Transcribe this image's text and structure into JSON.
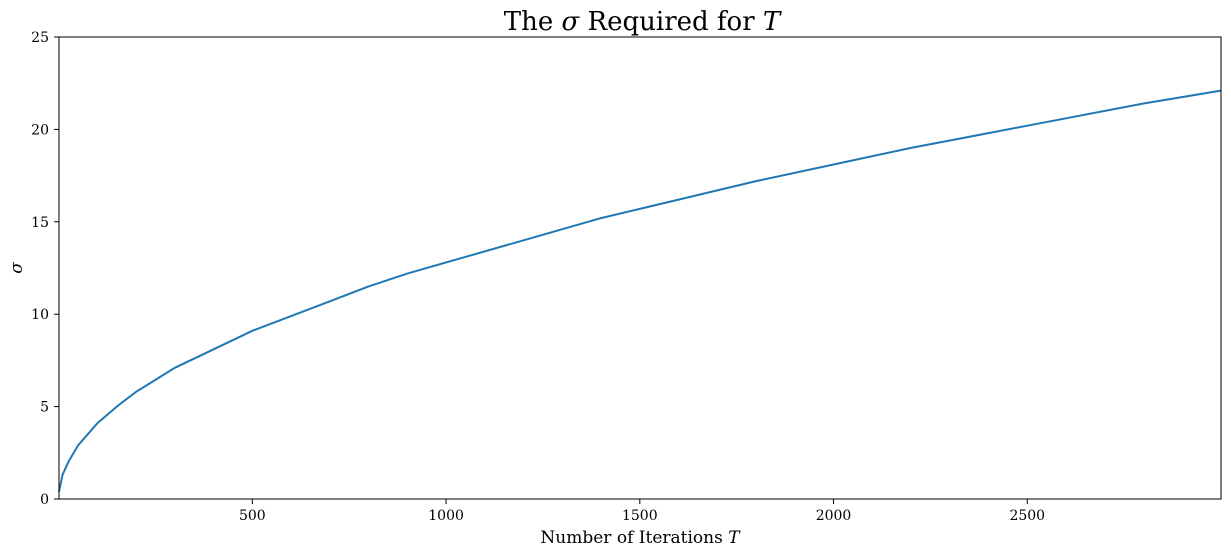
{
  "chart_data": {
    "type": "line",
    "title": {
      "prefix": "The ",
      "sym": "σ",
      "mid": " Required for ",
      "sym2": "T"
    },
    "xlabel": {
      "text": "Number of Iterations ",
      "sym": "T"
    },
    "ylabel": "σ",
    "xlim": [
      1,
      3000
    ],
    "ylim": [
      0,
      25
    ],
    "xticks": [
      500,
      1000,
      1500,
      2000,
      2500
    ],
    "yticks": [
      0,
      5,
      10,
      15,
      20,
      25
    ],
    "grid": false,
    "series": [
      {
        "color": "#1f77b4",
        "x": [
          1,
          10,
          25,
          50,
          100,
          150,
          200,
          300,
          400,
          500,
          600,
          700,
          800,
          900,
          1000,
          1200,
          1400,
          1500,
          1600,
          1800,
          2000,
          2200,
          2400,
          2500,
          2600,
          2800,
          3000
        ],
        "y": [
          0.4,
          1.3,
          2.0,
          2.9,
          4.1,
          5.0,
          5.8,
          7.1,
          8.1,
          9.1,
          9.9,
          10.7,
          11.5,
          12.2,
          12.8,
          14.0,
          15.2,
          15.7,
          16.2,
          17.2,
          18.1,
          19.0,
          19.8,
          20.2,
          20.6,
          21.4,
          22.1
        ]
      }
    ]
  }
}
